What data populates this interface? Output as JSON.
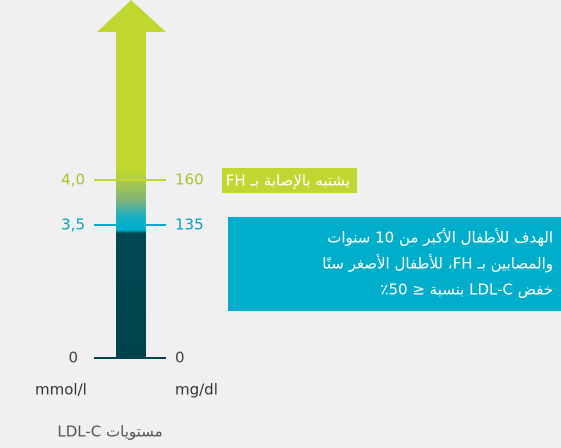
{
  "scale": {
    "ticks": [
      {
        "left": "4,0",
        "right": "160"
      },
      {
        "left": "3,5",
        "right": "135"
      },
      {
        "left": "0",
        "right": "0"
      }
    ],
    "left_unit": "mmol/l",
    "right_unit": "mg/dl",
    "axis_title": "مستويات LDL-C"
  },
  "callouts": [
    {
      "lines": [
        "يشتبه بالإصابة بـ FH"
      ]
    },
    {
      "lines": [
        "الهدف للأطفال الأكبر من 10 سنوات",
        "والمصابين بـ FH، للأطفال الأصغر سنًا",
        "خفض LDL-C بنسبة ≤ 50٪"
      ]
    }
  ]
}
